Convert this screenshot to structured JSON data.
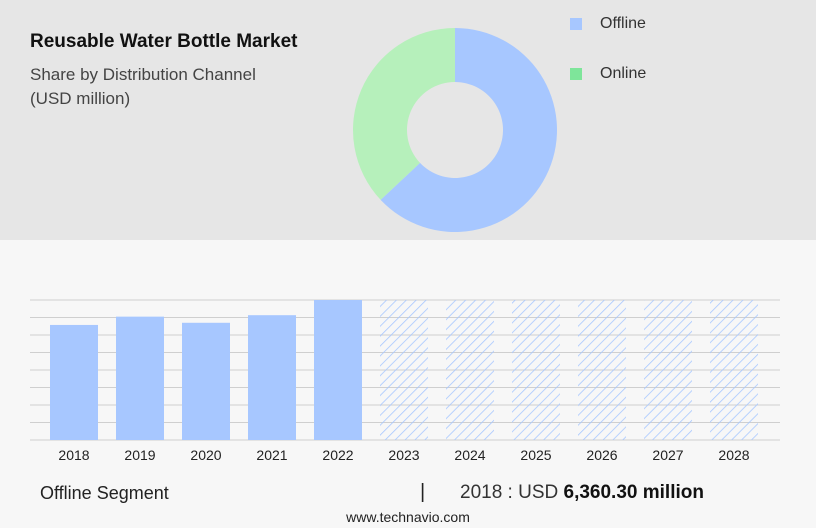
{
  "header": {
    "title": "Reusable Water Bottle Market",
    "subtitle_line1": "Share by Distribution Channel",
    "subtitle_line2": "(USD million)"
  },
  "legend": [
    {
      "label": "Offline",
      "color": "#a7c7ff"
    },
    {
      "label": "Online",
      "color": "#7ee59a"
    }
  ],
  "colors": {
    "offline": "#a7c7ff",
    "online": "#b6f0bb",
    "grid": "#cfcfcf",
    "forecast_hatch": "#a7c7ff"
  },
  "chart_data": [
    {
      "type": "pie",
      "donut": true,
      "slices": [
        {
          "label": "Offline",
          "value": 63
        },
        {
          "label": "Online",
          "value": 37
        }
      ]
    },
    {
      "type": "bar",
      "categories": [
        "2018",
        "2019",
        "2020",
        "2021",
        "2022",
        "2023",
        "2024",
        "2025",
        "2026",
        "2027",
        "2028"
      ],
      "values": [
        6360.3,
        6820,
        6480,
        6900,
        7740,
        7740,
        7740,
        7740,
        7740,
        7740,
        7740
      ],
      "forecast_from": "2023",
      "grid": true
    }
  ],
  "footer": {
    "segment": "Offline Segment",
    "separator": "|",
    "year_label": "2018 : USD",
    "value_label": "6,360.30 million",
    "website": "www.technavio.com"
  }
}
